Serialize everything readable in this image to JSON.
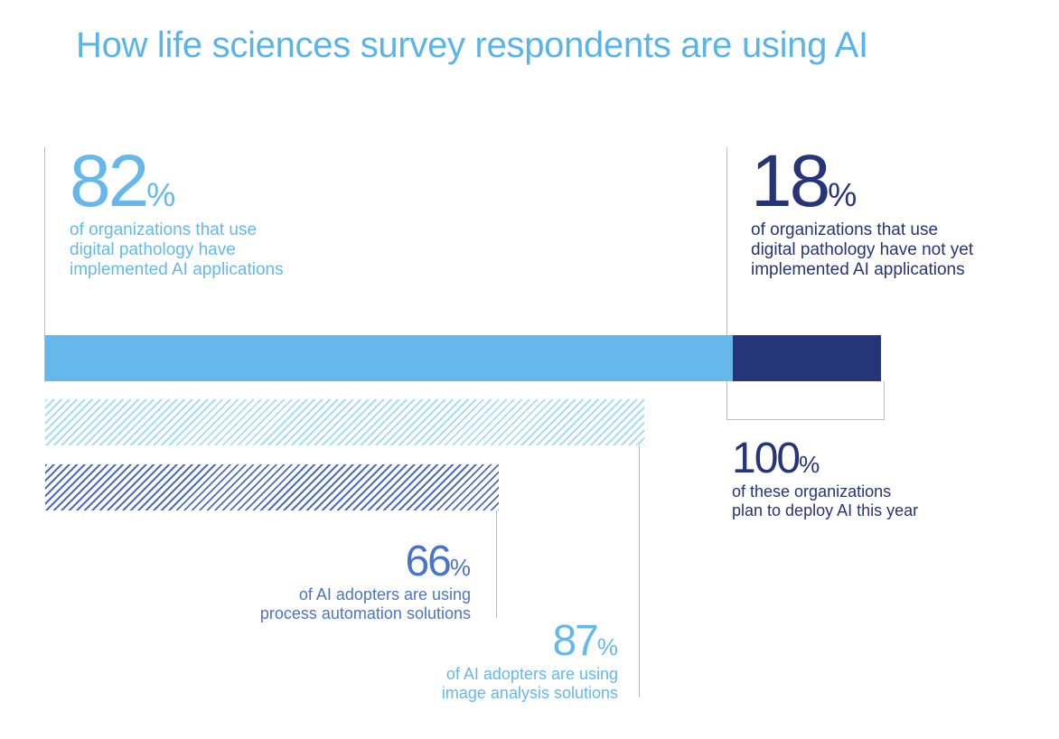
{
  "title": "How life sciences survey respondents are using AI",
  "colors": {
    "light_blue": "#66b8ea",
    "navy": "#263478",
    "mid_blue": "#4a74c9",
    "hatch_light": "#a9dcef",
    "hatch_dark": "#4f6dc0",
    "title": "#5ab4e8"
  },
  "chart_data": {
    "type": "bar",
    "title": "How life sciences survey respondents are using AI",
    "series": [
      {
        "value": 82,
        "label": "82",
        "unit": "%",
        "description": [
          "of organizations that use",
          "digital pathology have",
          "implemented AI applications"
        ]
      },
      {
        "value": 18,
        "label": "18",
        "unit": "%",
        "description": [
          "of organizations that use",
          "digital pathology have not yet",
          "implemented AI applications"
        ]
      },
      {
        "value": 100,
        "label": "100",
        "unit": "%",
        "description": [
          "of these organizations",
          "plan to deploy AI this year"
        ]
      },
      {
        "value": 87,
        "label": "87",
        "unit": "%",
        "description": [
          "of AI adopters are using",
          "image analysis solutions"
        ]
      },
      {
        "value": 66,
        "label": "66",
        "unit": "%",
        "description": [
          "of AI adopters are using",
          "process automation solutions"
        ]
      }
    ]
  }
}
